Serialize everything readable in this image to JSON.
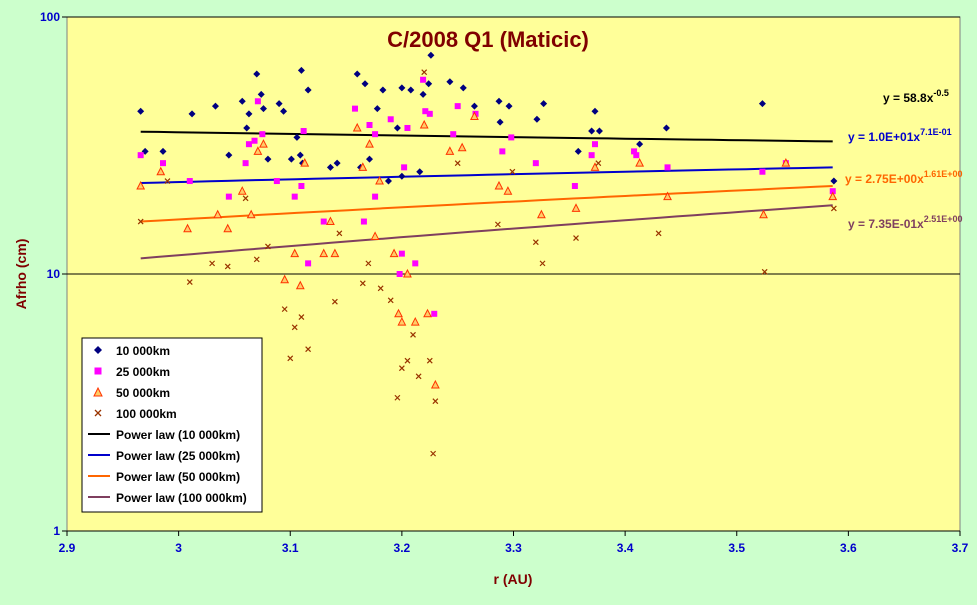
{
  "chart_data": {
    "type": "scatter",
    "title": "C/2008 Q1 (Maticic)",
    "xlabel": "r (AU)",
    "ylabel": "Afrho (cm)",
    "xlim": [
      2.9,
      3.7
    ],
    "ylim": [
      1,
      100
    ],
    "y_scale": "log",
    "x_ticks": [
      "2.9",
      "3",
      "3.1",
      "3.2",
      "3.3",
      "3.4",
      "3.5",
      "3.6",
      "3.7"
    ],
    "y_ticks": [
      "1",
      "10",
      "100"
    ],
    "grid": true,
    "legend_position": "bottom-left",
    "colors": {
      "figure_background": "#ccffcc",
      "plot_background": "#ffff99",
      "title": "#800000",
      "axis_label": "#800000",
      "tick_label": "#0000cc"
    },
    "series": [
      {
        "name": "10 000km",
        "marker": "diamond",
        "color": "#000080",
        "x": [
          2.966,
          2.97,
          2.986,
          3.012,
          3.033,
          3.045,
          3.057,
          3.061,
          3.063,
          3.07,
          3.074,
          3.076,
          3.08,
          3.09,
          3.094,
          3.101,
          3.106,
          3.109,
          3.11,
          3.111,
          3.116,
          3.136,
          3.142,
          3.16,
          3.163,
          3.167,
          3.171,
          3.178,
          3.183,
          3.188,
          3.196,
          3.2,
          3.2,
          3.208,
          3.216,
          3.219,
          3.224,
          3.226,
          3.243,
          3.255,
          3.265,
          3.287,
          3.288,
          3.296,
          3.321,
          3.327,
          3.358,
          3.37,
          3.373,
          3.377,
          3.413,
          3.437,
          3.523,
          3.587
        ],
        "y": [
          43,
          30,
          30,
          42,
          45,
          29,
          47,
          37,
          42,
          60,
          50,
          44,
          28,
          46,
          43,
          28,
          34,
          29,
          62,
          27,
          52,
          26,
          27,
          60,
          26,
          55,
          28,
          44,
          52,
          23,
          37,
          53,
          24,
          52,
          25,
          50,
          55,
          71,
          56,
          53,
          45,
          47,
          39,
          45,
          40,
          46,
          30,
          36,
          43,
          36,
          32,
          37,
          46,
          23
        ]
      },
      {
        "name": "25 000km",
        "marker": "square",
        "color": "#ff00ff",
        "x": [
          2.966,
          2.986,
          3.01,
          3.045,
          3.06,
          3.063,
          3.068,
          3.071,
          3.075,
          3.088,
          3.104,
          3.11,
          3.112,
          3.116,
          3.13,
          3.158,
          3.166,
          3.171,
          3.176,
          3.176,
          3.19,
          3.198,
          3.2,
          3.202,
          3.205,
          3.212,
          3.219,
          3.221,
          3.225,
          3.229,
          3.246,
          3.25,
          3.266,
          3.29,
          3.298,
          3.32,
          3.355,
          3.37,
          3.373,
          3.408,
          3.41,
          3.438,
          3.523,
          3.544,
          3.586
        ],
        "y": [
          29,
          27,
          23,
          20,
          27,
          32,
          33,
          47,
          35,
          23,
          20,
          22,
          36,
          11,
          16,
          44,
          16,
          38,
          20,
          35,
          40,
          10,
          12,
          26,
          37,
          11,
          57,
          43,
          42,
          7,
          35,
          45,
          42,
          30,
          34,
          27,
          22,
          29,
          32,
          30,
          29,
          26,
          25,
          27,
          21
        ]
      },
      {
        "name": "50 000km",
        "marker": "triangle",
        "color": "#ff3300",
        "x": [
          2.966,
          2.984,
          3.008,
          3.035,
          3.044,
          3.057,
          3.065,
          3.071,
          3.076,
          3.095,
          3.104,
          3.109,
          3.113,
          3.13,
          3.136,
          3.14,
          3.16,
          3.165,
          3.171,
          3.176,
          3.18,
          3.193,
          3.197,
          3.2,
          3.205,
          3.212,
          3.22,
          3.223,
          3.23,
          3.243,
          3.254,
          3.265,
          3.287,
          3.295,
          3.325,
          3.356,
          3.373,
          3.413,
          3.438,
          3.524,
          3.544,
          3.586
        ],
        "y": [
          22,
          25,
          15,
          17,
          15,
          21,
          17,
          30,
          32,
          9.5,
          12,
          9,
          27,
          12,
          16,
          12,
          37,
          26,
          32,
          14,
          23,
          12,
          7,
          6.5,
          10,
          6.5,
          38,
          7,
          3.7,
          30,
          31,
          41,
          22,
          21,
          17,
          18,
          26,
          27,
          20,
          17,
          27,
          20
        ]
      },
      {
        "name": "100 000km",
        "marker": "x",
        "color": "#993300",
        "x": [
          2.966,
          2.99,
          3.01,
          3.03,
          3.044,
          3.06,
          3.07,
          3.08,
          3.095,
          3.1,
          3.104,
          3.11,
          3.116,
          3.14,
          3.144,
          3.165,
          3.17,
          3.181,
          3.19,
          3.196,
          3.2,
          3.205,
          3.21,
          3.215,
          3.22,
          3.225,
          3.228,
          3.23,
          3.25,
          3.286,
          3.299,
          3.32,
          3.326,
          3.356,
          3.376,
          3.43,
          3.525,
          3.587
        ],
        "y": [
          16,
          23,
          9.3,
          11,
          10.7,
          19.7,
          11.4,
          12.8,
          7.3,
          4.7,
          6.2,
          6.8,
          5.1,
          7.8,
          14.4,
          9.2,
          11,
          8.8,
          7.9,
          3.3,
          4.3,
          4.6,
          5.8,
          4,
          61,
          4.6,
          2,
          3.2,
          27,
          15.6,
          25,
          13.3,
          11,
          13.8,
          27,
          14.4,
          10.2,
          18
        ]
      }
    ],
    "trendlines": [
      {
        "name": "Power law (10 000km)",
        "color": "#000000",
        "y_at_xmin": 35.8,
        "y_at_xmax": 32.8,
        "equation": "y = 58.8x",
        "exponent": "-0.5"
      },
      {
        "name": "Power law (25 000km)",
        "color": "#0000cc",
        "y_at_xmin": 22.6,
        "y_at_xmax": 26.0,
        "equation": "y = 1.0E+01x",
        "exponent": "7.1E-01"
      },
      {
        "name": "Power law (50 000km)",
        "color": "#ff6600",
        "y_at_xmin": 16.0,
        "y_at_xmax": 22.0,
        "equation": "y = 2.75E+00x",
        "exponent": "1.61E+00"
      },
      {
        "name": "Power law (100 000km)",
        "color": "#7f3f5f",
        "y_at_xmin": 11.5,
        "y_at_xmax": 18.5,
        "equation": "y = 7.35E-01x",
        "exponent": "2.51E+00"
      }
    ]
  }
}
